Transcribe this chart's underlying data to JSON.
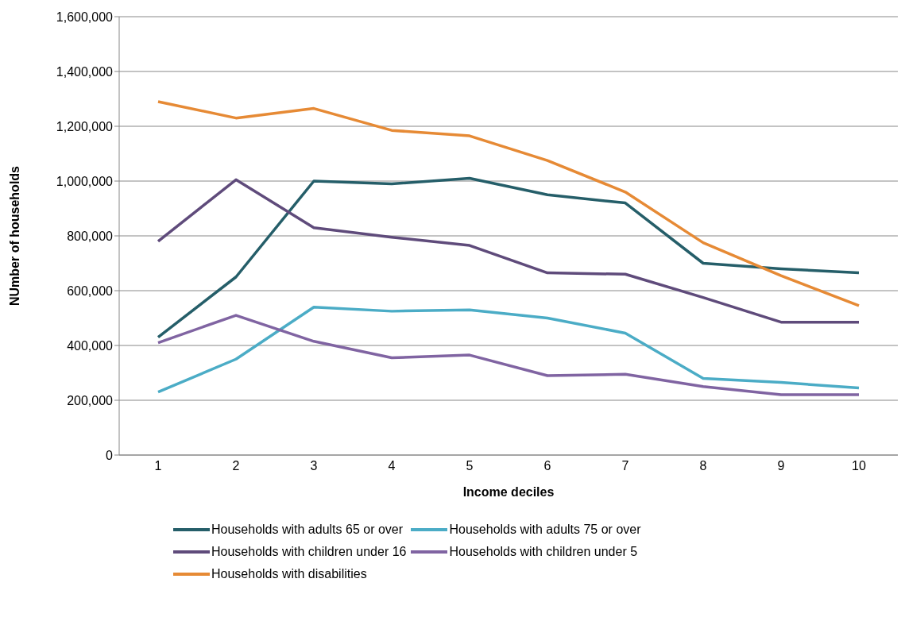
{
  "chart_data": {
    "type": "line",
    "xlabel": "Income deciles",
    "ylabel": "NUmber of households",
    "categories": [
      "1",
      "2",
      "3",
      "4",
      "5",
      "6",
      "7",
      "8",
      "9",
      "10"
    ],
    "series": [
      {
        "name": "Households with adults 65 or over",
        "color": "#255e69",
        "values": [
          430000,
          650000,
          1000000,
          990000,
          1010000,
          950000,
          920000,
          700000,
          680000,
          665000
        ]
      },
      {
        "name": "Households with adults 75 or over",
        "color": "#4bacc6",
        "values": [
          230000,
          350000,
          540000,
          525000,
          530000,
          500000,
          445000,
          280000,
          265000,
          245000
        ]
      },
      {
        "name": "Households with children under 16",
        "color": "#5f4b7b",
        "values": [
          780000,
          1005000,
          830000,
          795000,
          765000,
          665000,
          660000,
          575000,
          485000,
          485000
        ]
      },
      {
        "name": "Households with children under 5",
        "color": "#8064a2",
        "values": [
          410000,
          510000,
          415000,
          355000,
          365000,
          290000,
          295000,
          250000,
          220000,
          220000
        ]
      },
      {
        "name": "Households with disabilities",
        "color": "#e68a35",
        "values": [
          1290000,
          1230000,
          1265000,
          1185000,
          1165000,
          1075000,
          960000,
          775000,
          655000,
          545000
        ]
      }
    ],
    "ylim": [
      0,
      1600000
    ],
    "yticks": [
      {
        "value": 0,
        "label": "0"
      },
      {
        "value": 200000,
        "label": "200,000"
      },
      {
        "value": 400000,
        "label": "400,000"
      },
      {
        "value": 600000,
        "label": "600,000"
      },
      {
        "value": 800000,
        "label": "800,000"
      },
      {
        "value": 1000000,
        "label": "1,000,000"
      },
      {
        "value": 1200000,
        "label": "1,200,000"
      },
      {
        "value": 1400000,
        "label": "1,400,000"
      },
      {
        "value": 1600000,
        "label": "1,600,000"
      }
    ],
    "grid": "y",
    "legend": "bottom",
    "marker": "none",
    "line_style": "solid"
  }
}
